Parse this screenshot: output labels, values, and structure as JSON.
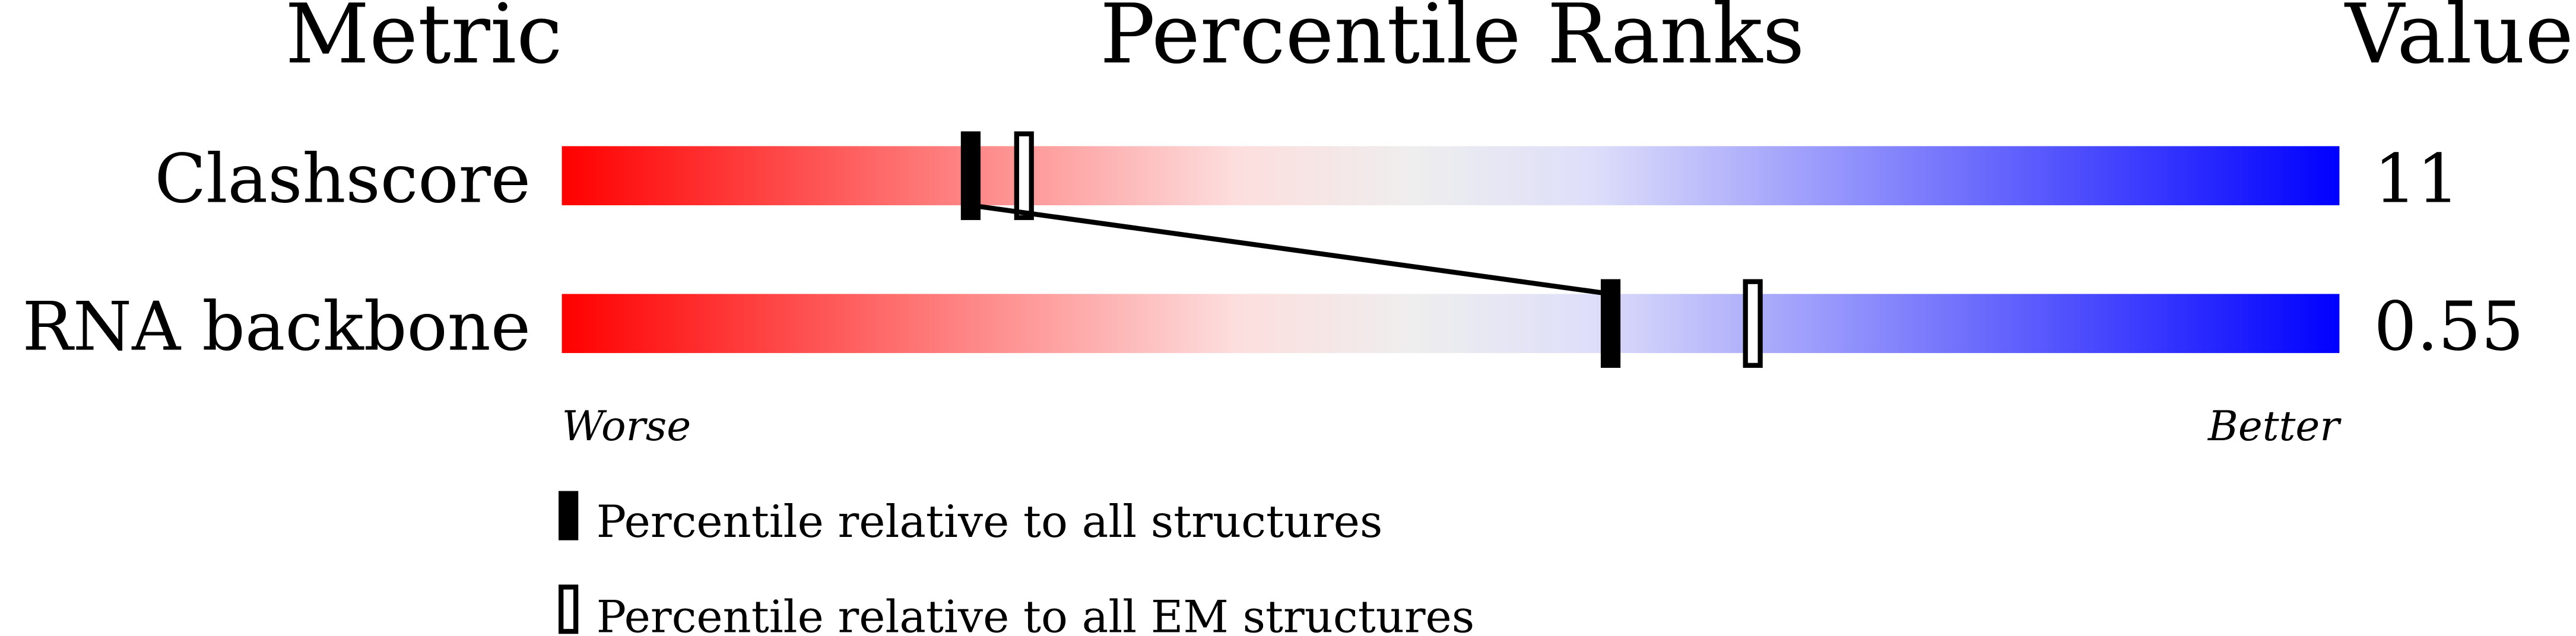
{
  "chart_data": {
    "type": "table",
    "headers": {
      "metric": "Metric",
      "ranks": "Percentile Ranks",
      "value": "Value"
    },
    "xlim": [
      0,
      100
    ],
    "rows": [
      {
        "metric": "Clashscore",
        "value": "11",
        "percentile_all": 23,
        "percentile_em": 26
      },
      {
        "metric": "RNA backbone",
        "value": "0.55",
        "percentile_all": 59,
        "percentile_em": 67
      }
    ],
    "axis": {
      "worse": "Worse",
      "better": "Better"
    },
    "legend": {
      "all": "Percentile relative to all structures",
      "em": "Percentile relative to all EM structures"
    },
    "gradient_colors": [
      "#ff0000",
      "#fddede",
      "#eeeeee",
      "#dedefa",
      "#0000ff"
    ]
  }
}
